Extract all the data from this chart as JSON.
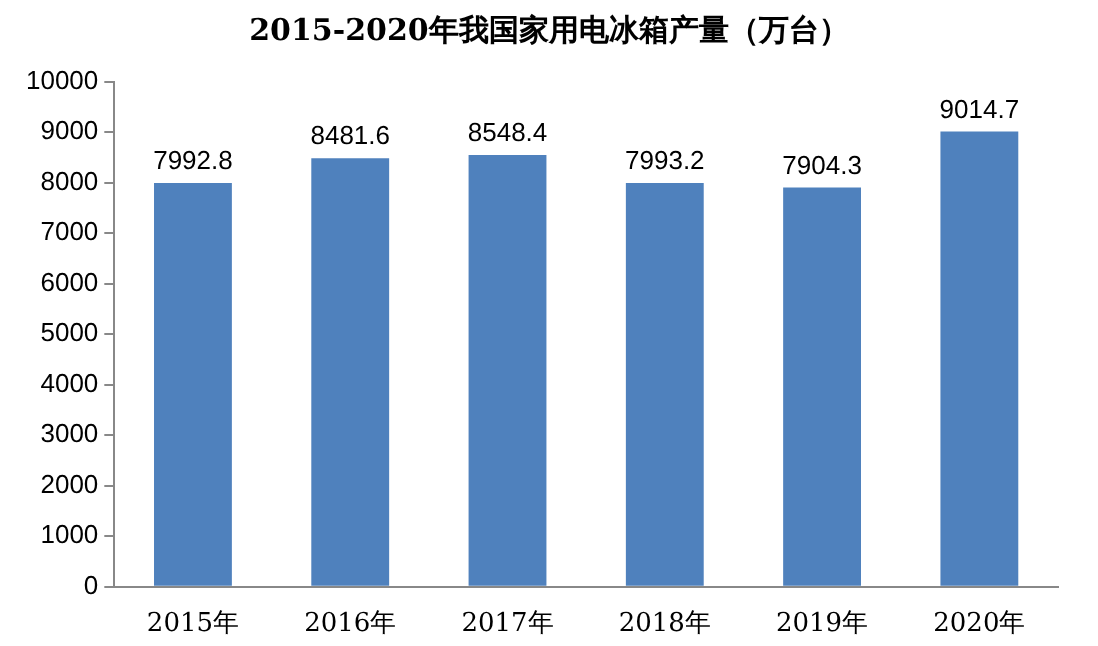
{
  "chart_data": {
    "type": "bar",
    "title": "2015-2020年我国家用电冰箱产量（万台）",
    "categories": [
      "2015年",
      "2016年",
      "2017年",
      "2018年",
      "2019年",
      "2020年"
    ],
    "values": [
      7992.8,
      8481.6,
      8548.4,
      7993.2,
      7904.3,
      9014.7
    ],
    "color": "#4f81bd",
    "ylim": [
      0,
      10000
    ],
    "yticks": [
      0,
      1000,
      2000,
      3000,
      4000,
      5000,
      6000,
      7000,
      8000,
      9000,
      10000
    ],
    "grid": false,
    "legend": false,
    "data_labels": true
  }
}
